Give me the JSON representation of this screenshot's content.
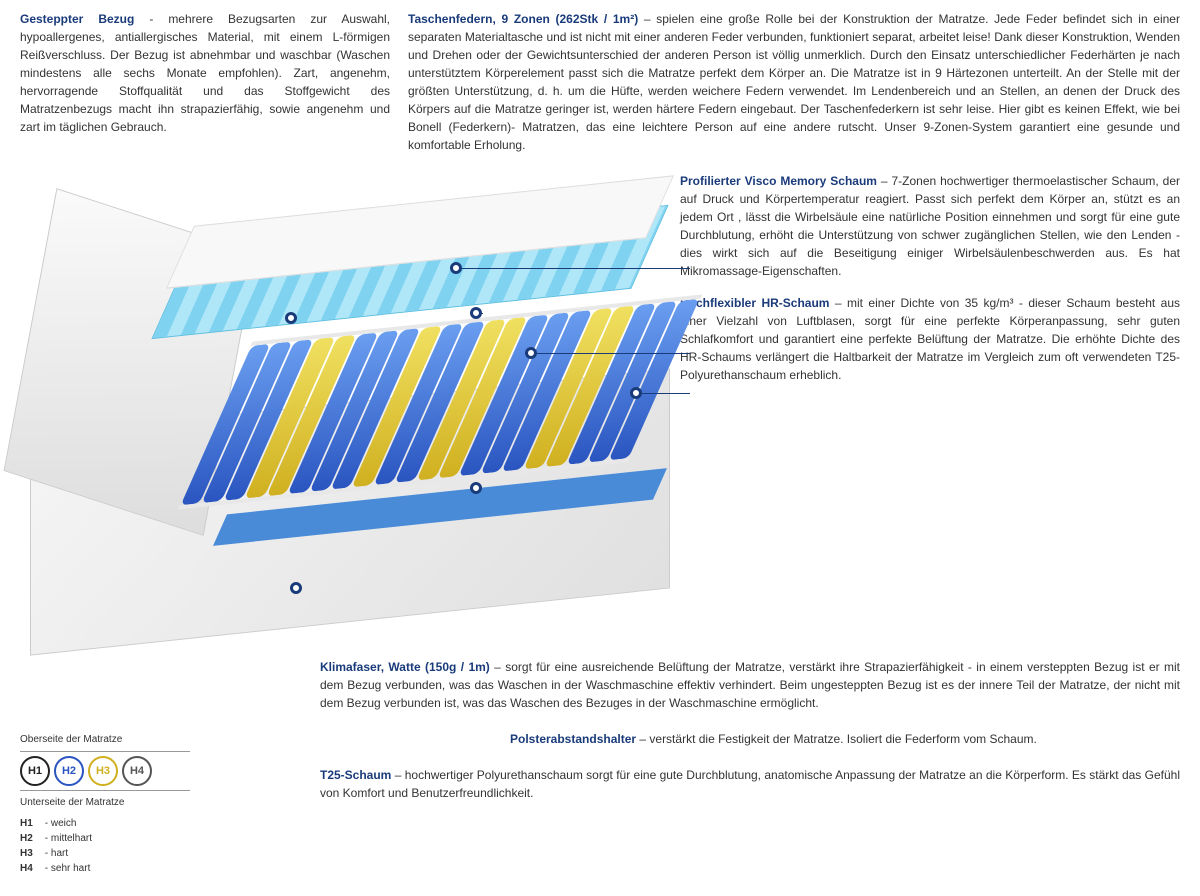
{
  "sections": {
    "bezug": {
      "title": "Gesteppter Bezug",
      "sep": " - ",
      "text": "mehrere Bezugsarten zur Auswahl, hypoallergenes, antiallergisches Material, mit einem L-förmigen Reißverschluss. Der Bezug ist abnehmbar und waschbar (Waschen mindestens alle sechs Monate empfohlen). Zart, angenehm, hervorragende Stoffqualität und das Stoffgewicht des Matratzenbezugs macht ihn strapazierfähig, sowie angenehm und zart im täglichen Gebrauch."
    },
    "federn": {
      "title": "Taschenfedern, 9 Zonen (262Stk / 1m²)",
      "sep": " – ",
      "text": "spielen eine große Rolle bei der Konstruktion der Matratze. Jede Feder befindet sich in einer separaten Materialtasche und ist nicht mit einer anderen Feder verbunden, funktioniert separat, arbeitet leise! Dank dieser Konstruktion, Wenden und Drehen oder der Gewichtsunterschied der anderen Person ist völlig unmerklich. Durch den Einsatz unterschiedlicher Federhärten je nach unterstütztem Körperelement passt sich die Matratze perfekt dem Körper an. Die Matratze ist in 9 Härtezonen unterteilt. An der Stelle mit der größten Unterstützung, d. h. um die Hüfte, werden weichere Federn verwendet. Im Lendenbereich und an Stellen, an denen der Druck des Körpers auf die Matratze geringer ist, werden härtere Federn eingebaut. Der Taschenfederkern ist sehr leise. Hier gibt es keinen Effekt, wie bei Bonell (Federkern)- Matratzen, das eine leichtere Person auf eine andere rutscht. Unser 9-Zonen-System garantiert eine gesunde und komfortable Erholung."
    },
    "visco": {
      "title": "Profilierter Visco Memory Schaum",
      "sep": " – ",
      "text": "7-Zonen hochwertiger thermoelastischer Schaum, der auf Druck und Körpertemperatur reagiert. Passt sich perfekt dem Körper an, stützt es an jedem Ort , lässt die Wirbelsäule eine natürliche Position einnehmen und sorgt für eine gute Durchblutung, erhöht die Unterstützung von schwer zugänglichen Stellen, wie den Lenden - dies wirkt sich auf die Beseitigung einiger Wirbelsäulenbeschwerden aus. Es hat Mikromassage-Eigenschaften."
    },
    "hr": {
      "title": "Hochflexibler HR-Schaum",
      "sep": " – ",
      "text": "mit einer Dichte von 35 kg/m³ - dieser Schaum besteht aus einer Vielzahl von Luftblasen, sorgt für eine perfekte Körperanpassung, sehr guten Schlafkomfort und garantiert eine perfekte Belüftung der Matratze. Die erhöhte Dichte des HR-Schaums verlängert die Haltbarkeit der Matratze im Vergleich zum oft verwendeten T25-Polyurethanschaum erheblich."
    },
    "klima": {
      "title": "Klimafaser, Watte (150g / 1m)",
      "sep": " – ",
      "text": "sorgt für eine ausreichende Belüftung der Matratze, verstärkt ihre Strapazierfähigkeit - in einem versteppten Bezug ist er mit dem Bezug verbunden, was das Waschen in der Waschmaschine effektiv verhindert. Beim ungesteppten Bezug ist es der innere Teil der Matratze, der nicht mit dem Bezug verbunden ist, was das Waschen des Bezuges in der Waschmaschine ermöglicht."
    },
    "polster": {
      "title": "Polsterabstandshalter",
      "sep": " – ",
      "text": "verstärkt die Festigkeit der Matratze. Isoliert die Federform vom Schaum."
    },
    "t25": {
      "title": "T25-Schaum",
      "sep": " – ",
      "text": "hochwertiger Polyurethanschaum sorgt für eine gute Durchblutung, anatomische Anpassung der Matratze an die Körperform. Es stärkt das Gefühl von Komfort und Benutzerfreundlichkeit."
    }
  },
  "hardness": {
    "top_label": "Oberseite der Matratze",
    "bottom_label": "Unterseite der Matratze",
    "levels": [
      {
        "code": "H1",
        "color": "#222222",
        "desc": "weich"
      },
      {
        "code": "H2",
        "color": "#2a55c0",
        "desc": "mittelhart"
      },
      {
        "code": "H3",
        "color": "#d0b020",
        "desc": "hart"
      },
      {
        "code": "H4",
        "color": "#555555",
        "desc": "sehr hart"
      }
    ]
  },
  "diagram": {
    "spring_pattern": [
      "b",
      "b",
      "b",
      "y",
      "y",
      "b",
      "b",
      "b",
      "y",
      "b",
      "b",
      "y",
      "y",
      "b",
      "b",
      "b",
      "y",
      "y",
      "b",
      "b",
      "b"
    ],
    "colors": {
      "b": "#2a55c0",
      "y": "#d0b020",
      "foam": "#7fd3f0",
      "accent": "#1a3b7a"
    }
  }
}
